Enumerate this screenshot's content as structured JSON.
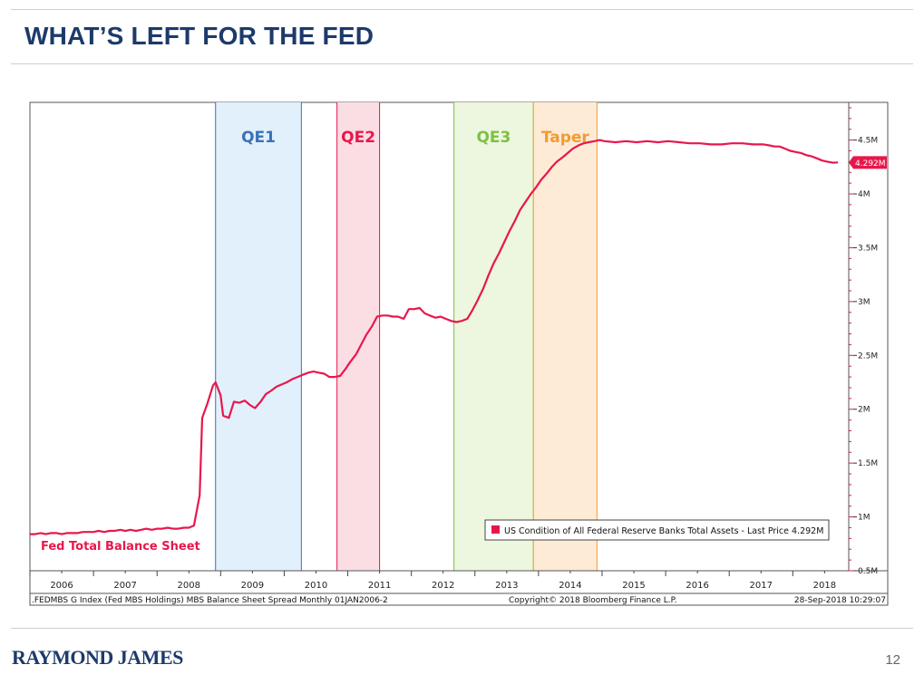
{
  "slide": {
    "title": "WHAT’S LEFT FOR THE FED",
    "brand": "RAYMOND JAMES",
    "page_number": "12"
  },
  "colors": {
    "title": "#1c3a6b",
    "series": "#e8174b",
    "qe1": "#3a72b8",
    "qe2": "#e8174b",
    "qe3": "#7cc142",
    "taper": "#f39a32"
  },
  "chart_data": {
    "type": "line",
    "series_label": "Fed Total Balance Sheet",
    "ylim": [
      0.5,
      4.85
    ],
    "xlim": [
      2006.0,
      2018.88
    ],
    "y_ticks": [
      {
        "value": 0.5,
        "label": "0.5M"
      },
      {
        "value": 1.0,
        "label": "1M"
      },
      {
        "value": 1.5,
        "label": "1.5M"
      },
      {
        "value": 2.0,
        "label": "2M"
      },
      {
        "value": 2.5,
        "label": "2.5M"
      },
      {
        "value": 3.0,
        "label": "3M"
      },
      {
        "value": 3.5,
        "label": "3.5M"
      },
      {
        "value": 4.0,
        "label": "4M"
      },
      {
        "value": 4.5,
        "label": "4.5M"
      }
    ],
    "x_labels": [
      "2006",
      "2007",
      "2008",
      "2009",
      "2010",
      "2011",
      "2012",
      "2013",
      "2014",
      "2015",
      "2016",
      "2017",
      "2018"
    ],
    "bands": [
      {
        "name": "QE1",
        "start": 2008.92,
        "end": 2010.27,
        "color": "#3a72b8",
        "fill": "#e2f0fb"
      },
      {
        "name": "QE2",
        "start": 2010.83,
        "end": 2011.5,
        "color": "#e8174b",
        "fill": "#fbdde4"
      },
      {
        "name": "QE3",
        "start": 2012.67,
        "end": 2013.92,
        "color": "#7cc142",
        "fill": "#edf6df"
      },
      {
        "name": "Taper",
        "start": 2013.92,
        "end": 2014.92,
        "color": "#f39a32",
        "fill": "#fdebd6"
      }
    ],
    "last_price": {
      "value": 4.292,
      "label": "4.292M"
    },
    "legend": "US Condition of All Federal Reserve Banks Total Assets - Last Price 4.292M",
    "footer_left": ".FEDMBS G Index (Fed MBS Holdings) MBS Balance Sheet Spread  Monthly 01JAN2006-2",
    "footer_center": "Copyright© 2018 Bloomberg Finance L.P.",
    "footer_right": "28-Sep-2018 10:29:07",
    "points": [
      [
        2006.0,
        0.84
      ],
      [
        2006.08,
        0.84
      ],
      [
        2006.17,
        0.85
      ],
      [
        2006.25,
        0.84
      ],
      [
        2006.33,
        0.85
      ],
      [
        2006.42,
        0.85
      ],
      [
        2006.5,
        0.84
      ],
      [
        2006.58,
        0.85
      ],
      [
        2006.67,
        0.85
      ],
      [
        2006.75,
        0.85
      ],
      [
        2006.83,
        0.86
      ],
      [
        2006.92,
        0.86
      ],
      [
        2007.0,
        0.86
      ],
      [
        2007.08,
        0.87
      ],
      [
        2007.17,
        0.86
      ],
      [
        2007.25,
        0.87
      ],
      [
        2007.33,
        0.87
      ],
      [
        2007.42,
        0.88
      ],
      [
        2007.5,
        0.87
      ],
      [
        2007.58,
        0.88
      ],
      [
        2007.67,
        0.87
      ],
      [
        2007.75,
        0.88
      ],
      [
        2007.83,
        0.89
      ],
      [
        2007.92,
        0.88
      ],
      [
        2008.0,
        0.89
      ],
      [
        2008.08,
        0.89
      ],
      [
        2008.17,
        0.9
      ],
      [
        2008.25,
        0.89
      ],
      [
        2008.33,
        0.89
      ],
      [
        2008.42,
        0.9
      ],
      [
        2008.5,
        0.9
      ],
      [
        2008.58,
        0.92
      ],
      [
        2008.67,
        1.2
      ],
      [
        2008.71,
        1.92
      ],
      [
        2008.79,
        2.05
      ],
      [
        2008.88,
        2.22
      ],
      [
        2008.92,
        2.25
      ],
      [
        2009.0,
        2.13
      ],
      [
        2009.04,
        1.94
      ],
      [
        2009.13,
        1.92
      ],
      [
        2009.21,
        2.07
      ],
      [
        2009.29,
        2.06
      ],
      [
        2009.38,
        2.08
      ],
      [
        2009.46,
        2.04
      ],
      [
        2009.54,
        2.01
      ],
      [
        2009.63,
        2.07
      ],
      [
        2009.71,
        2.14
      ],
      [
        2009.79,
        2.17
      ],
      [
        2009.88,
        2.21
      ],
      [
        2009.96,
        2.23
      ],
      [
        2010.04,
        2.25
      ],
      [
        2010.13,
        2.28
      ],
      [
        2010.21,
        2.3
      ],
      [
        2010.29,
        2.32
      ],
      [
        2010.38,
        2.34
      ],
      [
        2010.46,
        2.35
      ],
      [
        2010.54,
        2.34
      ],
      [
        2010.63,
        2.33
      ],
      [
        2010.71,
        2.3
      ],
      [
        2010.79,
        2.3
      ],
      [
        2010.88,
        2.31
      ],
      [
        2010.96,
        2.37
      ],
      [
        2011.04,
        2.44
      ],
      [
        2011.13,
        2.51
      ],
      [
        2011.21,
        2.6
      ],
      [
        2011.29,
        2.69
      ],
      [
        2011.38,
        2.77
      ],
      [
        2011.46,
        2.86
      ],
      [
        2011.54,
        2.87
      ],
      [
        2011.63,
        2.87
      ],
      [
        2011.71,
        2.86
      ],
      [
        2011.79,
        2.86
      ],
      [
        2011.88,
        2.84
      ],
      [
        2011.96,
        2.93
      ],
      [
        2012.04,
        2.93
      ],
      [
        2012.13,
        2.94
      ],
      [
        2012.21,
        2.89
      ],
      [
        2012.29,
        2.87
      ],
      [
        2012.38,
        2.85
      ],
      [
        2012.46,
        2.86
      ],
      [
        2012.54,
        2.84
      ],
      [
        2012.63,
        2.82
      ],
      [
        2012.71,
        2.81
      ],
      [
        2012.79,
        2.82
      ],
      [
        2012.88,
        2.84
      ],
      [
        2012.96,
        2.92
      ],
      [
        2013.04,
        3.01
      ],
      [
        2013.13,
        3.12
      ],
      [
        2013.21,
        3.24
      ],
      [
        2013.29,
        3.35
      ],
      [
        2013.38,
        3.45
      ],
      [
        2013.46,
        3.55
      ],
      [
        2013.54,
        3.65
      ],
      [
        2013.63,
        3.75
      ],
      [
        2013.71,
        3.85
      ],
      [
        2013.79,
        3.92
      ],
      [
        2013.88,
        4.0
      ],
      [
        2013.96,
        4.06
      ],
      [
        2014.04,
        4.13
      ],
      [
        2014.13,
        4.19
      ],
      [
        2014.21,
        4.25
      ],
      [
        2014.29,
        4.3
      ],
      [
        2014.38,
        4.34
      ],
      [
        2014.46,
        4.38
      ],
      [
        2014.54,
        4.42
      ],
      [
        2014.63,
        4.45
      ],
      [
        2014.71,
        4.47
      ],
      [
        2014.79,
        4.48
      ],
      [
        2014.88,
        4.49
      ],
      [
        2014.96,
        4.5
      ],
      [
        2015.04,
        4.49
      ],
      [
        2015.21,
        4.48
      ],
      [
        2015.38,
        4.49
      ],
      [
        2015.54,
        4.48
      ],
      [
        2015.71,
        4.49
      ],
      [
        2015.88,
        4.48
      ],
      [
        2016.04,
        4.49
      ],
      [
        2016.21,
        4.48
      ],
      [
        2016.38,
        4.47
      ],
      [
        2016.54,
        4.47
      ],
      [
        2016.71,
        4.46
      ],
      [
        2016.88,
        4.46
      ],
      [
        2017.04,
        4.47
      ],
      [
        2017.21,
        4.47
      ],
      [
        2017.38,
        4.46
      ],
      [
        2017.54,
        4.46
      ],
      [
        2017.63,
        4.45
      ],
      [
        2017.71,
        4.44
      ],
      [
        2017.79,
        4.44
      ],
      [
        2017.88,
        4.42
      ],
      [
        2017.96,
        4.4
      ],
      [
        2018.04,
        4.39
      ],
      [
        2018.13,
        4.38
      ],
      [
        2018.21,
        4.36
      ],
      [
        2018.29,
        4.35
      ],
      [
        2018.38,
        4.33
      ],
      [
        2018.46,
        4.31
      ],
      [
        2018.54,
        4.3
      ],
      [
        2018.63,
        4.29
      ],
      [
        2018.71,
        4.292
      ]
    ]
  }
}
